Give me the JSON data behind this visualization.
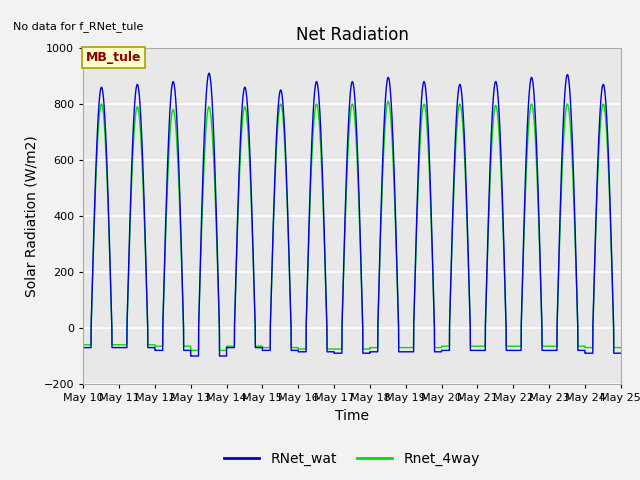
{
  "title": "Net Radiation",
  "xlabel": "Time",
  "ylabel": "Solar Radiation (W/m2)",
  "no_data_text": "No data for f_RNet_tule",
  "box_label": "MB_tule",
  "ylim": [
    -200,
    1000
  ],
  "legend_entries": [
    "RNet_wat",
    "Rnet_4way"
  ],
  "legend_colors": [
    "#0000dd",
    "#00dd00"
  ],
  "x_tick_labels": [
    "May 10",
    "May 11",
    "May 12",
    "May 13",
    "May 14",
    "May 15",
    "May 16",
    "May 17",
    "May 18",
    "May 19",
    "May 20",
    "May 21",
    "May 22",
    "May 23",
    "May 24",
    "May 25"
  ],
  "background_color": "#e8e8e8",
  "grid_color": "#ffffff",
  "num_days": 15,
  "peak_blue": [
    860,
    870,
    880,
    910,
    860,
    850,
    880,
    880,
    895,
    880,
    870,
    880,
    895,
    905,
    870
  ],
  "peak_green": [
    800,
    790,
    780,
    790,
    790,
    800,
    800,
    800,
    810,
    800,
    800,
    795,
    800,
    800,
    800
  ],
  "trough_blue": [
    -70,
    -70,
    -80,
    -100,
    -70,
    -80,
    -85,
    -90,
    -85,
    -85,
    -80,
    -80,
    -80,
    -80,
    -90
  ],
  "trough_green": [
    -60,
    -60,
    -65,
    -80,
    -65,
    -70,
    -75,
    -75,
    -70,
    -70,
    -65,
    -65,
    -65,
    -65,
    -70
  ],
  "day_start": 0.22,
  "day_end": 0.8,
  "fig_bg": "#f2f2f2",
  "title_fontsize": 12,
  "label_fontsize": 10,
  "tick_fontsize": 8
}
